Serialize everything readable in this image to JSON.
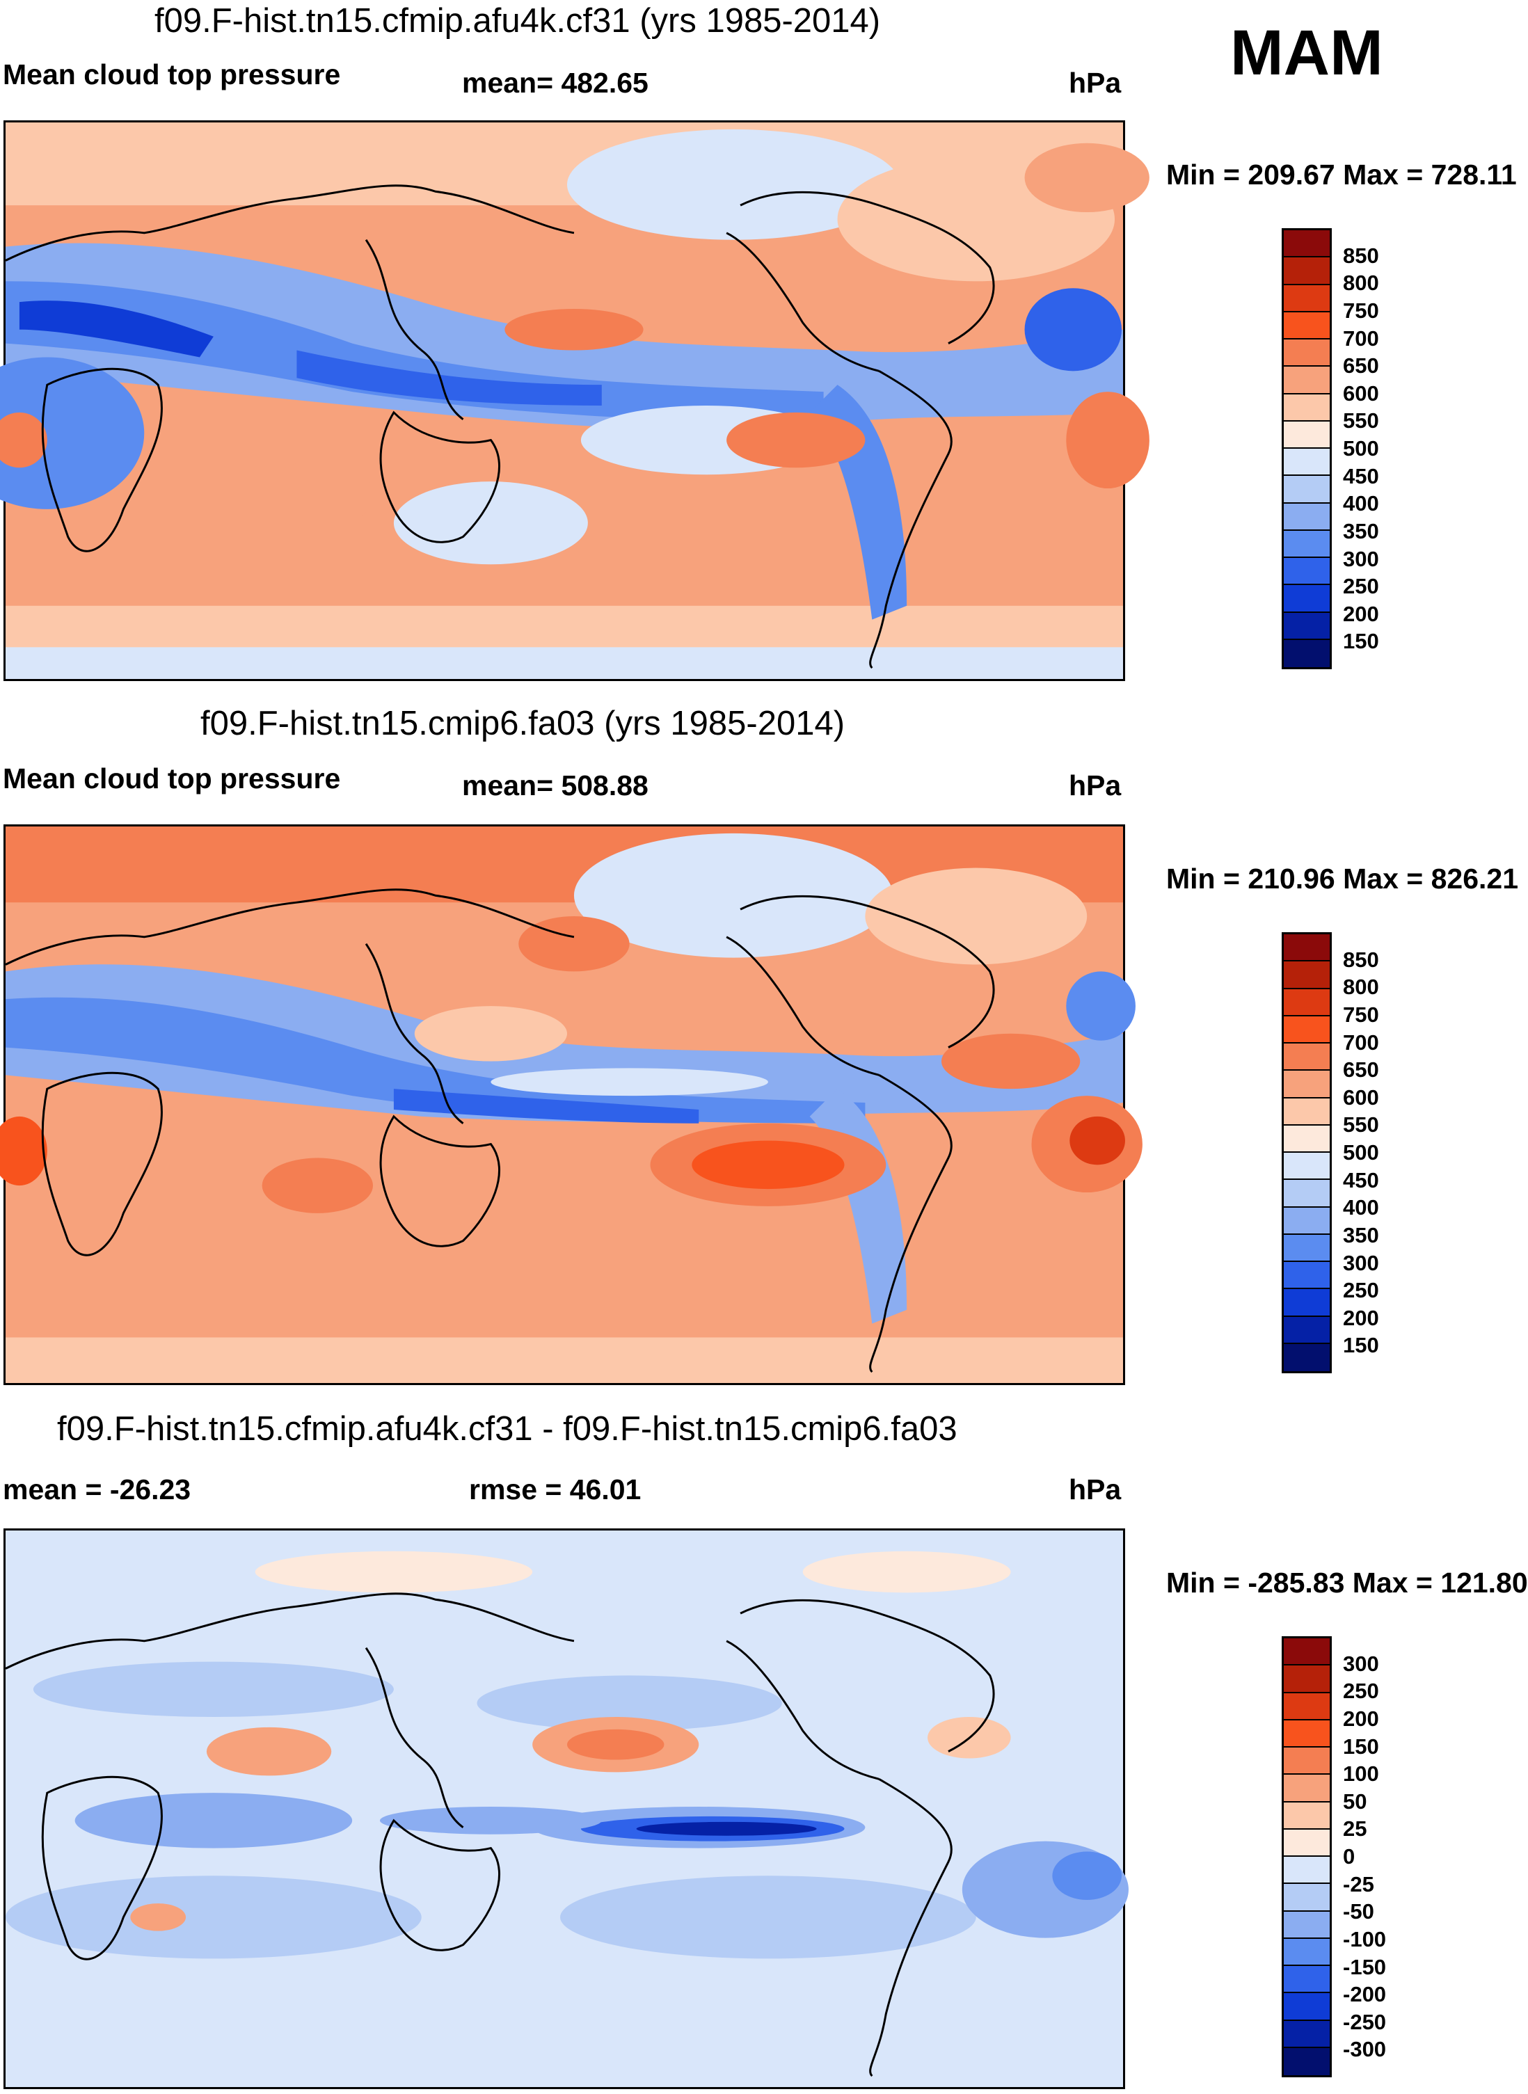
{
  "season": "MAM",
  "units": "hPa",
  "chart_data": [
    {
      "type": "heatmap",
      "title": "f09.F-hist.tn15.cfmip.afu4k.cf31 (yrs 1985-2014)",
      "variable": "Mean cloud top pressure",
      "stat_text": "mean= 482.65",
      "mean": 482.65,
      "range_text": "Min = 209.67 Max = 728.11",
      "min": 209.67,
      "max": 728.11,
      "colorbar": {
        "labels": [
          "850",
          "800",
          "750",
          "700",
          "650",
          "600",
          "550",
          "500",
          "450",
          "400",
          "350",
          "300",
          "250",
          "200",
          "150"
        ],
        "colors": [
          "#8b0a0a",
          "#b52109",
          "#dd3a12",
          "#f8531d",
          "#f47e52",
          "#f7a27c",
          "#fcc8aa",
          "#fde9dc",
          "#d9e6fa",
          "#b4ccf5",
          "#8badf1",
          "#5b8cf0",
          "#2f62ea",
          "#0f3cd6",
          "#0521a6",
          "#020f6e"
        ]
      }
    },
    {
      "type": "heatmap",
      "title": "f09.F-hist.tn15.cmip6.fa03 (yrs 1985-2014)",
      "variable": "Mean cloud top pressure",
      "stat_text": "mean= 508.88",
      "mean": 508.88,
      "range_text": "Min = 210.96 Max = 826.21",
      "min": 210.96,
      "max": 826.21,
      "colorbar": {
        "labels": [
          "850",
          "800",
          "750",
          "700",
          "650",
          "600",
          "550",
          "500",
          "450",
          "400",
          "350",
          "300",
          "250",
          "200",
          "150"
        ],
        "colors": [
          "#8b0a0a",
          "#b52109",
          "#dd3a12",
          "#f8531d",
          "#f47e52",
          "#f7a27c",
          "#fcc8aa",
          "#fde9dc",
          "#d9e6fa",
          "#b4ccf5",
          "#8badf1",
          "#5b8cf0",
          "#2f62ea",
          "#0f3cd6",
          "#0521a6",
          "#020f6e"
        ]
      }
    },
    {
      "type": "heatmap",
      "title": "f09.F-hist.tn15.cfmip.afu4k.cf31 - f09.F-hist.tn15.cmip6.fa03",
      "stat_text": "mean = -26.23",
      "mean": -26.23,
      "rmse_text": "rmse =  46.01",
      "rmse": 46.01,
      "range_text": "Min = -285.83 Max = 121.80",
      "min": -285.83,
      "max": 121.8,
      "colorbar": {
        "labels": [
          "300",
          "250",
          "200",
          "150",
          "100",
          "50",
          "25",
          "0",
          "-25",
          "-50",
          "-100",
          "-150",
          "-200",
          "-250",
          "-300"
        ],
        "colors": [
          "#8b0a0a",
          "#b52109",
          "#dd3a12",
          "#f8531d",
          "#f47e52",
          "#f7a27c",
          "#fcc8aa",
          "#fde9dc",
          "#d9e6fa",
          "#b4ccf5",
          "#8badf1",
          "#5b8cf0",
          "#2f62ea",
          "#0f3cd6",
          "#0521a6",
          "#020f6e"
        ]
      }
    }
  ]
}
